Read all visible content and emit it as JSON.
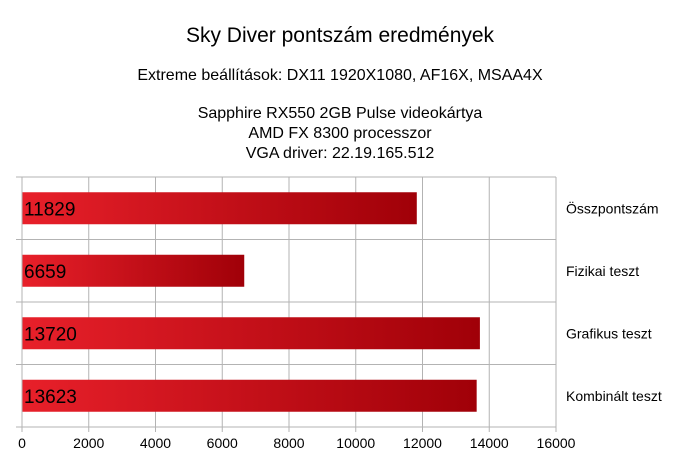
{
  "chart_data": {
    "type": "bar",
    "orientation": "horizontal",
    "title": "Sky Diver pontszám eredmények",
    "subtitle": "Extreme beállítások: DX11 1920X1080, AF16X, MSAA4X",
    "info_lines": [
      "Sapphire RX550 2GB Pulse videokártya",
      "AMD FX 8300 processzor",
      "VGA driver: 22.19.165.512"
    ],
    "categories": [
      "Összpontszám",
      "Fizikai teszt",
      "Grafikus teszt",
      "Kombinált teszt"
    ],
    "values": [
      11829,
      6659,
      13720,
      13623
    ],
    "data_labels": [
      "11829",
      "6659",
      "13720",
      "13623"
    ],
    "xlim": [
      0,
      16000
    ],
    "xticks": [
      "0",
      "2000",
      "4000",
      "6000",
      "8000",
      "10000",
      "12000",
      "14000",
      "16000"
    ],
    "grid": true,
    "category_labels_side": "right",
    "bar_color_start": "#e8202a",
    "bar_color_end": "#a00008"
  }
}
